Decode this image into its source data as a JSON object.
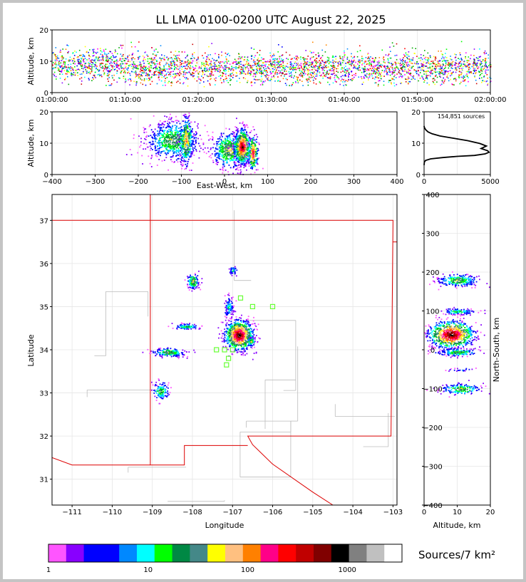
{
  "title": "LL LMA 0100-0200 UTC August 22, 2025",
  "source_count_label": "154,851 sources",
  "colorbar": {
    "label": "Sources/7 km²",
    "tick_labels": [
      "1",
      "10",
      "100",
      "1000"
    ],
    "colors": [
      "#ff55ff",
      "#8800ff",
      "#0000ff",
      "#0000ff",
      "#0088ff",
      "#00ffff",
      "#00ff00",
      "#008844",
      "#448888",
      "#ffff00",
      "#ffc080",
      "#ff8000",
      "#ff0088",
      "#ff0000",
      "#c00000",
      "#800000",
      "#000000",
      "#808080",
      "#c0c0c0",
      "#ffffff"
    ]
  },
  "chart_data": [
    {
      "id": "time-height",
      "type": "scatter",
      "xlabel": "",
      "ylabel": "Altitude, km",
      "xlim": [
        "01:00:00",
        "02:00:00"
      ],
      "xticks": [
        "01:00:00",
        "01:10:00",
        "01:20:00",
        "01:30:00",
        "01:40:00",
        "01:50:00",
        "02:00:00"
      ],
      "ylim": [
        0,
        20
      ],
      "yticks": [
        0,
        10,
        20
      ],
      "grid": true,
      "source_band_km": [
        3,
        15
      ]
    },
    {
      "id": "east-west-altitude",
      "type": "heatmap",
      "xlabel": "East-West, km",
      "ylabel": "Altitude, km",
      "xlim": [
        -400,
        400
      ],
      "xticks": [
        -400,
        -300,
        -200,
        -100,
        0,
        100,
        200,
        300,
        400
      ],
      "ylim": [
        0,
        20
      ],
      "yticks": [
        0,
        10,
        20
      ],
      "grid": true
    },
    {
      "id": "altitude-histogram",
      "type": "line",
      "xlabel": "",
      "ylabel": "",
      "xlim": [
        0,
        5000
      ],
      "xticks": [
        0,
        5000
      ],
      "ylim": [
        0,
        20
      ],
      "yticks": [
        0,
        10,
        20
      ],
      "x": [
        0,
        20,
        120,
        500,
        1400,
        2500,
        3800,
        4600,
        4900,
        4800,
        4300,
        4700,
        4200,
        3300,
        2200,
        1200,
        600,
        300,
        120,
        20,
        0
      ],
      "y": [
        3.0,
        4.0,
        4.5,
        5.0,
        5.4,
        5.8,
        6.1,
        6.6,
        7.1,
        7.6,
        8.3,
        9.1,
        9.9,
        10.8,
        11.6,
        12.3,
        13.0,
        13.6,
        14.3,
        15.0,
        15.5
      ]
    },
    {
      "id": "plan-view",
      "type": "scatter",
      "xlabel": "Longitude",
      "ylabel": "Latitude",
      "xlim": [
        -111.5,
        -102.9
      ],
      "xticks": [
        -111,
        -110,
        -109,
        -108,
        -107,
        -106,
        -105,
        -104,
        -103
      ],
      "ylim": [
        30.4,
        37.6
      ],
      "yticks": [
        31,
        32,
        33,
        34,
        35,
        36,
        37
      ],
      "grid": true,
      "stations": [
        {
          "lon": -106.8,
          "lat": 35.2
        },
        {
          "lon": -106.5,
          "lat": 35.0
        },
        {
          "lon": -106.0,
          "lat": 35.0
        },
        {
          "lon": -107.4,
          "lat": 34.0
        },
        {
          "lon": -107.2,
          "lat": 34.0
        },
        {
          "lon": -107.0,
          "lat": 34.0
        },
        {
          "lon": -107.1,
          "lat": 33.8
        },
        {
          "lon": -107.15,
          "lat": 33.65
        }
      ]
    },
    {
      "id": "altitude-north-south",
      "type": "heatmap",
      "xlabel": "Altitude, km",
      "ylabel": "North-South, km",
      "xlim": [
        0,
        20
      ],
      "xticks": [
        0,
        10,
        20
      ],
      "ylim": [
        -400,
        400
      ],
      "yticks": [
        -400,
        -300,
        -200,
        -100,
        0,
        100,
        200,
        300,
        400
      ],
      "grid": true
    }
  ]
}
